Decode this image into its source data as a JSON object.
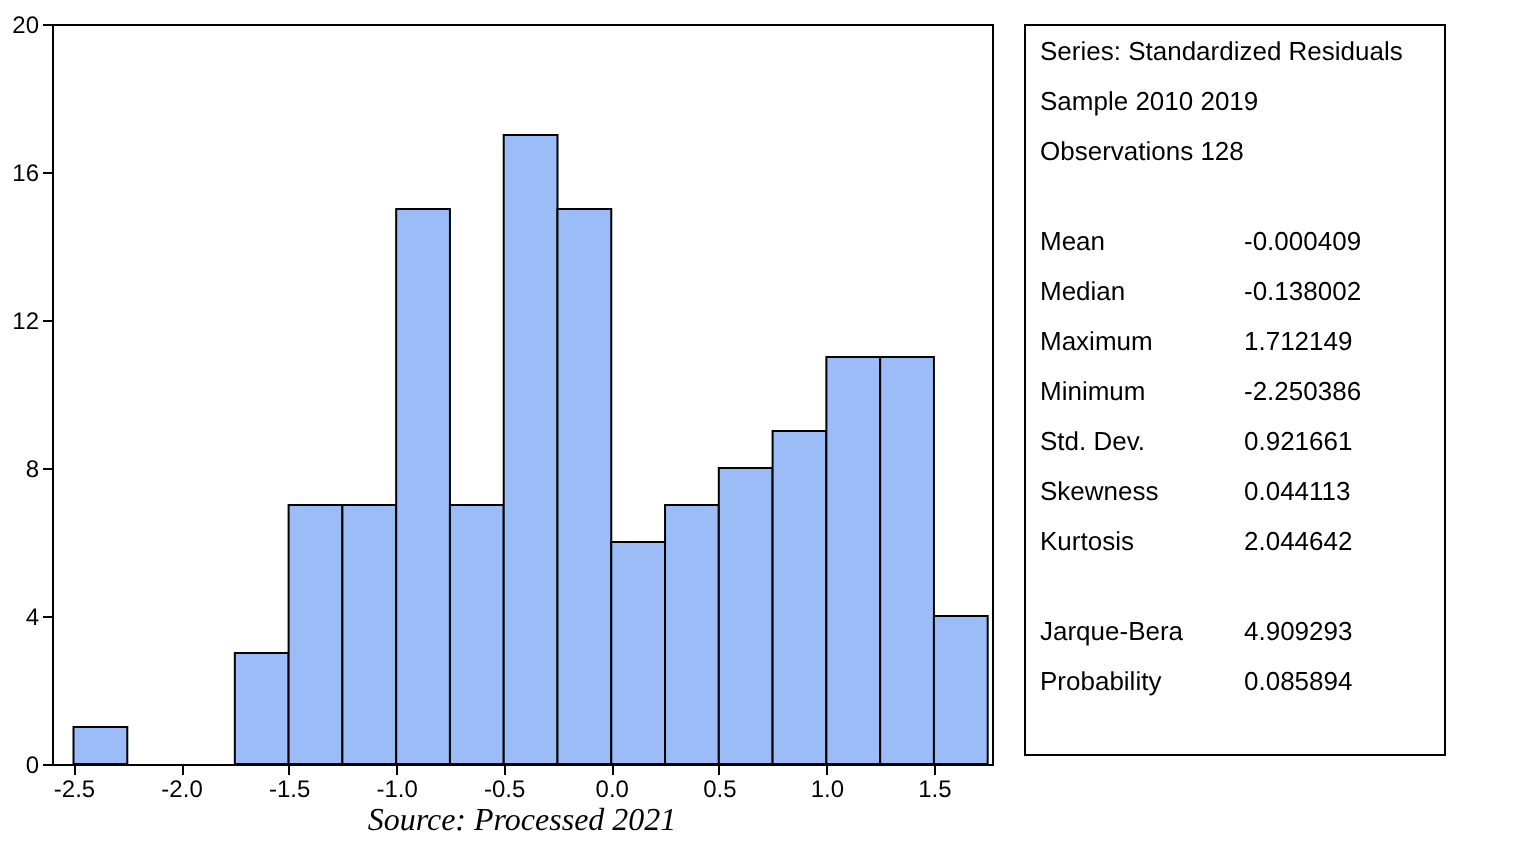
{
  "chart_data": [
    {
      "type": "histogram",
      "bins": [
        -2.5,
        -2.25,
        -2.0,
        -1.75,
        -1.5,
        -1.25,
        -1.0,
        -0.75,
        -0.5,
        -0.25,
        0.0,
        0.25,
        0.5,
        0.75,
        1.0,
        1.25,
        1.5,
        1.75
      ],
      "values": [
        1,
        0,
        0,
        3,
        7,
        7,
        15,
        7,
        17,
        15,
        6,
        7,
        8,
        9,
        11,
        11,
        4
      ],
      "color": "#9bbcf7",
      "xlim": [
        -2.6,
        1.77
      ],
      "xticks": [
        -2.5,
        {
          "value": -2,
          "label": "-2.0"
        },
        -1.5,
        {
          "value": -1,
          "label": "-1.0"
        },
        -0.5,
        {
          "value": 0,
          "label": "0.0"
        },
        0.5,
        {
          "value": 1,
          "label": "1.0"
        },
        1.5
      ],
      "ylim": [
        0,
        20
      ],
      "yticks": [
        0,
        4,
        8,
        12,
        16,
        20
      ],
      "grid": false,
      "annotations": [
        "Source: Processed 2021"
      ]
    },
    {
      "type": "other",
      "annotations": [
        "Series: Standardized Residuals",
        "Sample 2010 2019",
        "Observations 128",
        "Mean\t-0.000409",
        "Median\t-0.138002",
        "Maximum\t 1.712149",
        "Minimum\t-2.250386",
        "Std. Dev.\t 0.921661",
        "Skewness\t 0.044113",
        "Kurtosis\t 2.044642",
        "Jarque-Bera\t 4.909293",
        "Probability\t 0.085894"
      ]
    }
  ]
}
